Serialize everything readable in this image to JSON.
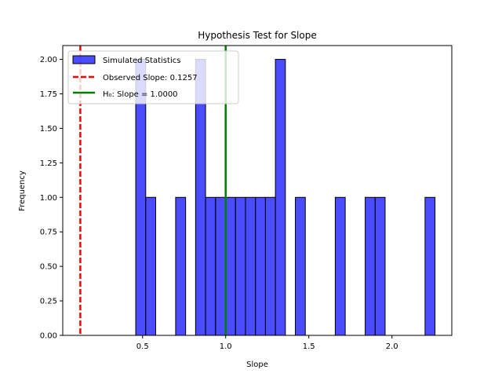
{
  "chart_data": {
    "type": "bar",
    "title": "Hypothesis Test for Slope",
    "xlabel": "Slope",
    "ylabel": "Frequency",
    "xlim": [
      0.02,
      2.36
    ],
    "ylim": [
      0,
      2.1
    ],
    "x_ticks": [
      {
        "value": 0.5,
        "label": "0.5"
      },
      {
        "value": 1.0,
        "label": "1.0"
      },
      {
        "value": 1.5,
        "label": "1.5"
      },
      {
        "value": 2.0,
        "label": "2.0"
      }
    ],
    "y_ticks": [
      {
        "value": 0.0,
        "label": "0.00"
      },
      {
        "value": 0.25,
        "label": "0.25"
      },
      {
        "value": 0.5,
        "label": "0.50"
      },
      {
        "value": 0.75,
        "label": "0.75"
      },
      {
        "value": 1.0,
        "label": "1.00"
      },
      {
        "value": 1.25,
        "label": "1.25"
      },
      {
        "value": 1.5,
        "label": "1.50"
      },
      {
        "value": 1.75,
        "label": "1.75"
      },
      {
        "value": 2.0,
        "label": "2.00"
      }
    ],
    "bins": [
      {
        "start": 0.459,
        "end": 0.519,
        "count": 2
      },
      {
        "start": 0.519,
        "end": 0.579,
        "count": 1
      },
      {
        "start": 0.699,
        "end": 0.759,
        "count": 1
      },
      {
        "start": 0.819,
        "end": 0.879,
        "count": 2
      },
      {
        "start": 0.879,
        "end": 0.939,
        "count": 1
      },
      {
        "start": 0.939,
        "end": 0.999,
        "count": 1
      },
      {
        "start": 0.999,
        "end": 1.059,
        "count": 1
      },
      {
        "start": 1.059,
        "end": 1.119,
        "count": 1
      },
      {
        "start": 1.119,
        "end": 1.179,
        "count": 1
      },
      {
        "start": 1.179,
        "end": 1.239,
        "count": 1
      },
      {
        "start": 1.239,
        "end": 1.299,
        "count": 1
      },
      {
        "start": 1.299,
        "end": 1.359,
        "count": 2
      },
      {
        "start": 1.419,
        "end": 1.479,
        "count": 1
      },
      {
        "start": 1.659,
        "end": 1.719,
        "count": 1
      },
      {
        "start": 1.839,
        "end": 1.899,
        "count": 1
      },
      {
        "start": 1.899,
        "end": 1.959,
        "count": 1
      },
      {
        "start": 2.199,
        "end": 2.259,
        "count": 1
      }
    ],
    "bar_color": "#0000ff",
    "bar_edge_color": "#000000",
    "observed_slope": 0.1257,
    "null_slope": 1.0,
    "observed_color": "#ff0000",
    "null_color": "#008000",
    "legend_position": "upper-left",
    "legend": [
      {
        "label": "Simulated Statistics"
      },
      {
        "label": "Observed Slope: 0.1257"
      },
      {
        "label": "H₀: Slope = 1.0000"
      }
    ],
    "grid": false
  }
}
